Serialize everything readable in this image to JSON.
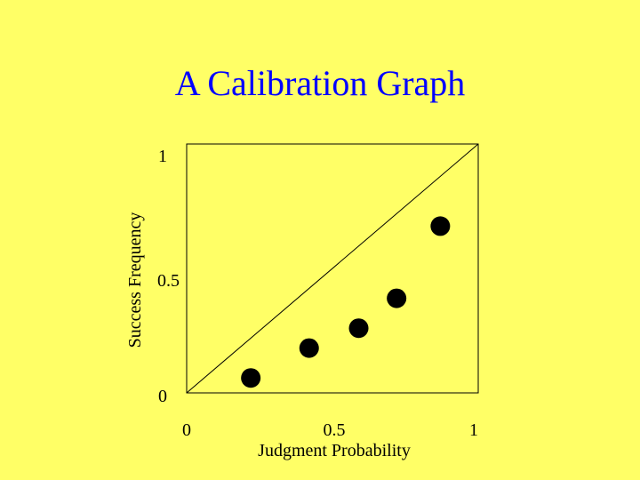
{
  "slide": {
    "title": "A Calibration Graph"
  },
  "chart_data": {
    "type": "scatter",
    "title": "A Calibration Graph",
    "xlabel": "Judgment Probability",
    "ylabel": "Success Frequency",
    "xlim": [
      0,
      1
    ],
    "ylim": [
      0,
      1
    ],
    "x_ticks": [
      "0",
      "0.5",
      "1"
    ],
    "y_ticks": [
      "0",
      "0.5",
      "1"
    ],
    "reference_line": {
      "from": [
        0,
        0
      ],
      "to": [
        1,
        1
      ]
    },
    "series": [
      {
        "points": [
          {
            "x": 0.22,
            "y": 0.06
          },
          {
            "x": 0.42,
            "y": 0.18
          },
          {
            "x": 0.59,
            "y": 0.26
          },
          {
            "x": 0.72,
            "y": 0.38
          },
          {
            "x": 0.87,
            "y": 0.67
          }
        ]
      }
    ],
    "grid": false,
    "legend": "none",
    "colors": {
      "background": "#FFFF66",
      "title": "#0000FF",
      "marks": "#000000"
    }
  }
}
